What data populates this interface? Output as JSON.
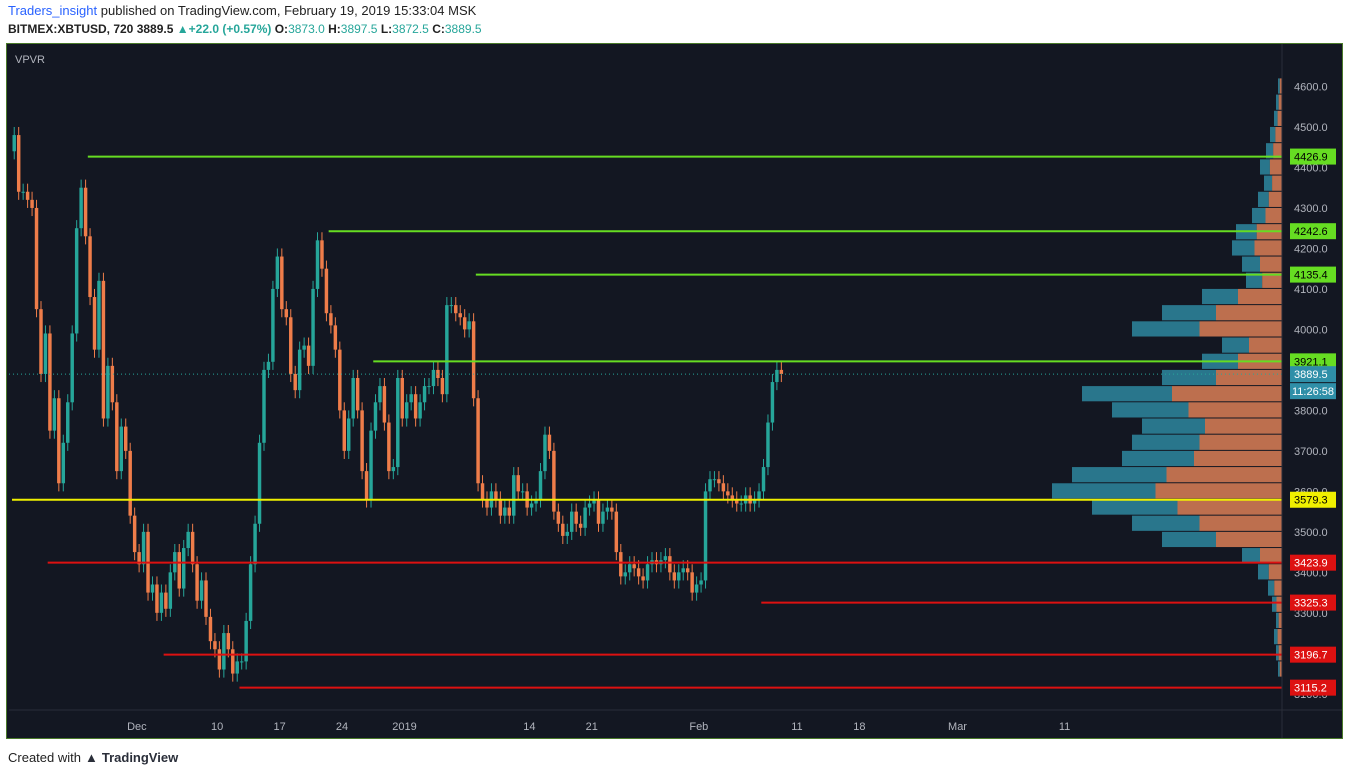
{
  "header": {
    "publisher": "Traders_insight",
    "published_text": "published on TradingView.com, February 19, 2019 15:33:04 MSK",
    "symbol": "BITMEX:XBTUSD, 720",
    "last": "3889.5",
    "change": "+22.0 (+0.57%)",
    "o_label": "O:",
    "o_value": "3873.0",
    "h_label": "H:",
    "h_value": "3897.5",
    "l_label": "L:",
    "l_value": "3872.5",
    "c_label": "C:",
    "c_value": "3889.5"
  },
  "indicator_label": "VPVR",
  "footer": {
    "created": "Created with",
    "brand": "TradingView"
  },
  "colors": {
    "bg": "#131722",
    "up": "#26a69a",
    "down": "#ef7d4a",
    "support": "#66dd22",
    "resistance": "#dd1111",
    "poc": "#f0f000",
    "vp_up": "#2f8fa8",
    "vp_down": "#e8865a",
    "grid_text": "#b2b5be"
  },
  "chart_data": {
    "type": "candlestick",
    "symbol": "BITMEX:XBTUSD",
    "interval": "720",
    "ylim": [
      3060,
      4700
    ],
    "yticks": [
      3100,
      3200,
      3300,
      3400,
      3500,
      3600,
      3700,
      3800,
      3900,
      4000,
      4100,
      4200,
      4300,
      4400,
      4500,
      4600
    ],
    "ytick_labels": [
      "3100.0",
      "3200.0",
      "3300.0",
      "3400.0",
      "3500.0",
      "3600.0",
      "3700.0",
      "3800.0",
      "3900.0",
      "4000.0",
      "4100.0",
      "4200.0",
      "4300.0",
      "4400.0",
      "4500.0",
      "4600.0"
    ],
    "xticks": [
      {
        "label": "Dec",
        "bar": 28
      },
      {
        "label": "10",
        "bar": 46
      },
      {
        "label": "17",
        "bar": 60
      },
      {
        "label": "24",
        "bar": 74
      },
      {
        "label": "2019",
        "bar": 88
      },
      {
        "label": "14",
        "bar": 116
      },
      {
        "label": "21",
        "bar": 130
      },
      {
        "label": "Feb",
        "bar": 154
      },
      {
        "label": "11",
        "bar": 176
      },
      {
        "label": "18",
        "bar": 190
      },
      {
        "label": "Mar",
        "bar": 212
      },
      {
        "label": "11",
        "bar": 236
      }
    ],
    "last_price": 3889.5,
    "last_price_label": "3889.5",
    "countdown": "11:26:58",
    "levels": [
      {
        "price": 4426.9,
        "label": "4426.9",
        "kind": "support",
        "from_bar": 17
      },
      {
        "price": 4242.6,
        "label": "4242.6",
        "kind": "support",
        "from_bar": 71
      },
      {
        "price": 4135.4,
        "label": "4135.4",
        "kind": "support",
        "from_bar": 104
      },
      {
        "price": 3921.1,
        "label": "3921.1",
        "kind": "support",
        "from_bar": 81
      },
      {
        "price": 3579.3,
        "label": "3579.3",
        "kind": "poc",
        "from_bar": 0
      },
      {
        "price": 3423.9,
        "label": "3423.9",
        "kind": "resistance",
        "from_bar": 8
      },
      {
        "price": 3325.3,
        "label": "3325.3",
        "kind": "resistance",
        "from_bar": 168
      },
      {
        "price": 3196.7,
        "label": "3196.7",
        "kind": "resistance",
        "from_bar": 34
      },
      {
        "price": 3115.2,
        "label": "3115.2",
        "kind": "resistance",
        "from_bar": 51
      }
    ],
    "closes": [
      4480,
      4340,
      4340,
      4320,
      4300,
      4050,
      3890,
      3990,
      3750,
      3830,
      3620,
      3720,
      3820,
      3990,
      4250,
      4350,
      4230,
      4080,
      3950,
      4120,
      3780,
      3910,
      3820,
      3650,
      3760,
      3700,
      3540,
      3450,
      3420,
      3500,
      3350,
      3370,
      3300,
      3350,
      3310,
      3400,
      3450,
      3360,
      3460,
      3500,
      3420,
      3330,
      3380,
      3290,
      3230,
      3210,
      3160,
      3250,
      3210,
      3150,
      3180,
      3180,
      3280,
      3420,
      3520,
      3720,
      3900,
      3920,
      4100,
      4180,
      4050,
      4030,
      3890,
      3850,
      3950,
      3960,
      3910,
      4100,
      4220,
      4150,
      4040,
      4010,
      3950,
      3800,
      3700,
      3780,
      3880,
      3800,
      3650,
      3580,
      3750,
      3820,
      3860,
      3770,
      3650,
      3660,
      3880,
      3780,
      3820,
      3840,
      3780,
      3820,
      3860,
      3860,
      3900,
      3880,
      3840,
      4060,
      4060,
      4040,
      4030,
      4000,
      4020,
      3830,
      3620,
      3580,
      3560,
      3600,
      3580,
      3540,
      3560,
      3540,
      3640,
      3600,
      3600,
      3560,
      3570,
      3580,
      3650,
      3740,
      3700,
      3550,
      3520,
      3490,
      3500,
      3550,
      3520,
      3510,
      3560,
      3570,
      3580,
      3520,
      3550,
      3560,
      3550,
      3450,
      3390,
      3400,
      3420,
      3410,
      3390,
      3380,
      3420,
      3430,
      3420,
      3430,
      3440,
      3400,
      3380,
      3400,
      3410,
      3400,
      3350,
      3370,
      3380,
      3600,
      3630,
      3630,
      3620,
      3600,
      3590,
      3580,
      3570,
      3570,
      3590,
      3570,
      3580,
      3600,
      3660,
      3770,
      3870,
      3900,
      3890
    ]
  }
}
